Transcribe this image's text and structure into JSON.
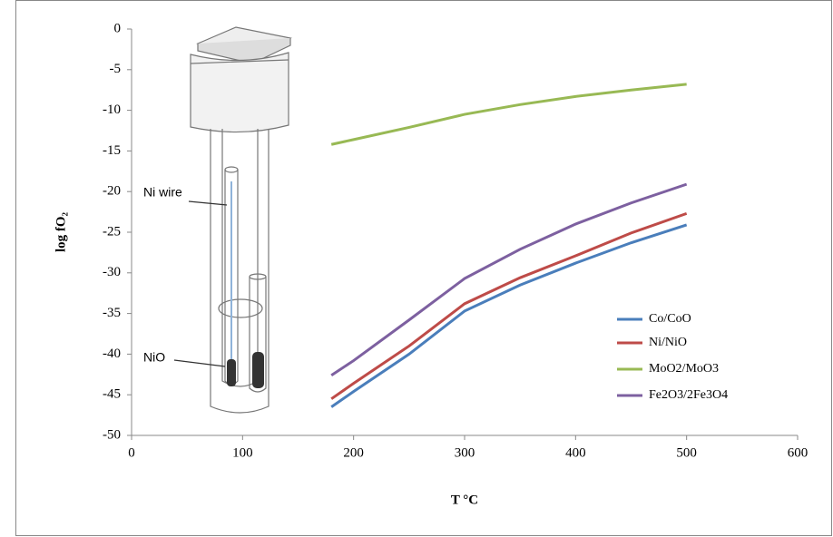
{
  "chart_data": {
    "type": "line",
    "x_label": "T °C",
    "y_label": "log fO₂",
    "x": [
      180,
      200,
      250,
      300,
      350,
      400,
      450,
      500
    ],
    "series": [
      {
        "name": "Co/CoO",
        "color": "#4a7ebb",
        "values": [
          -46.5,
          -44.6,
          -40.0,
          -34.7,
          -31.5,
          -28.8,
          -26.3,
          -24.1
        ]
      },
      {
        "name": "Ni/NiO",
        "color": "#be4b48",
        "values": [
          -45.5,
          -43.6,
          -39.0,
          -33.8,
          -30.6,
          -27.9,
          -25.1,
          -22.7
        ]
      },
      {
        "name": "MoO2/MoO3",
        "color": "#98b954",
        "values": [
          -14.2,
          -13.6,
          -12.1,
          -10.5,
          -9.3,
          -8.3,
          -7.5,
          -6.8
        ]
      },
      {
        "name": "Fe2O3/2Fe3O4",
        "color": "#7d60a0",
        "values": [
          -42.6,
          -40.8,
          -35.8,
          -30.7,
          -27.1,
          -24.0,
          -21.4,
          -19.1
        ]
      }
    ],
    "xlim": [
      0,
      600
    ],
    "xticks": [
      0,
      100,
      200,
      300,
      400,
      500,
      600
    ],
    "ylim": [
      -50,
      0
    ],
    "yticks": [
      0,
      -5,
      -10,
      -15,
      -20,
      -25,
      -30,
      -35,
      -40,
      -45,
      -50
    ],
    "grid": false,
    "legend": "right",
    "annotations": [
      "Ni wire",
      "NiO"
    ]
  }
}
